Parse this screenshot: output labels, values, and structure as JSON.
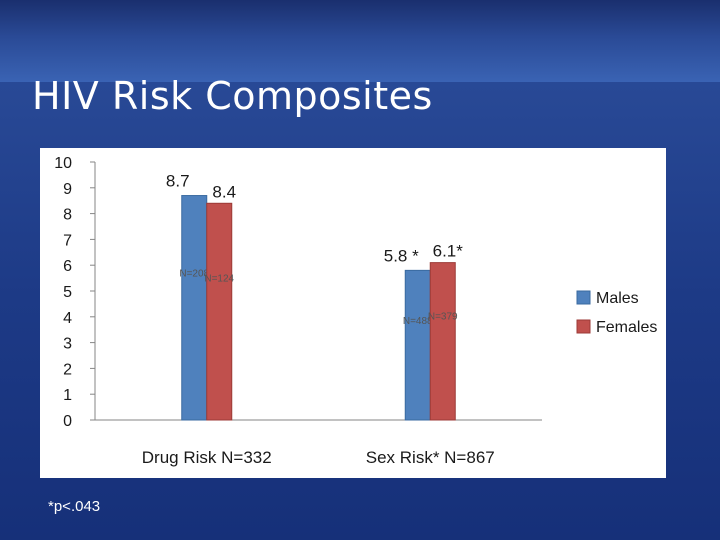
{
  "slide": {
    "title": "HIV Risk Composites",
    "footnote": "*p<.043"
  },
  "colors": {
    "males": "#4f81bd",
    "females": "#c0504d",
    "males_edge": "#3a6aa0",
    "females_edge": "#9c3a37"
  },
  "chart_data": {
    "type": "bar",
    "title": "",
    "xlabel": "",
    "ylabel": "",
    "ylim": [
      0,
      10
    ],
    "yticks": [
      "0",
      "1",
      "2",
      "3",
      "4",
      "5",
      "6",
      "7",
      "8",
      "9",
      "10"
    ],
    "categories": [
      "Drug Risk N=332",
      "Sex Risk* N=867"
    ],
    "series": [
      {
        "name": "Males",
        "color": "#4f81bd",
        "values": [
          8.7,
          5.8
        ],
        "value_labels": [
          "8.7",
          "5.8 *"
        ],
        "n_labels": [
          "N=208",
          "N=488"
        ]
      },
      {
        "name": "Females",
        "color": "#c0504d",
        "values": [
          8.4,
          6.1
        ],
        "value_labels": [
          "8.4",
          "6.1*"
        ],
        "n_labels": [
          "N=124",
          "N=379"
        ]
      }
    ],
    "legend_position": "right",
    "grid": false
  }
}
